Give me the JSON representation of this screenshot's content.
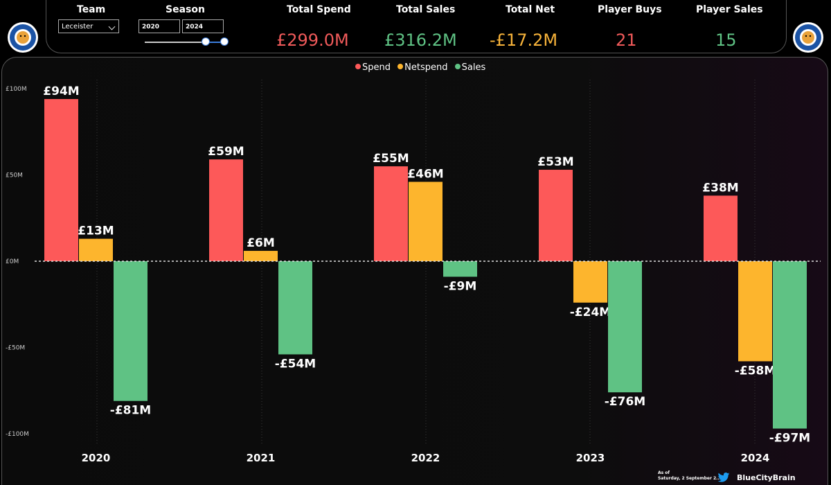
{
  "filters": {
    "team_label": "Team",
    "team_value": "Leceister",
    "season_label": "Season",
    "season_start": "2020",
    "season_end": "2024"
  },
  "kpis": [
    {
      "label": "Total Spend",
      "value": "£299.0M",
      "color": "#f05a5a"
    },
    {
      "label": "Total Sales",
      "value": "£316.2M",
      "color": "#5fc284"
    },
    {
      "label": "Total Net",
      "value": "-£17.2M",
      "color": "#f7b33a"
    },
    {
      "label": "Player Buys",
      "value": "21",
      "color": "#f05a5a"
    },
    {
      "label": "Player Sales",
      "value": "15",
      "color": "#5fc284"
    }
  ],
  "legend": [
    {
      "name": "Spend",
      "color": "#fd5959"
    },
    {
      "name": "Netspend",
      "color": "#fdb52d"
    },
    {
      "name": "Sales",
      "color": "#5fc284"
    }
  ],
  "footer": {
    "as_of_label": "As of",
    "as_of_date": "Saturday, 2 September 2...",
    "twitter_icon": "twitter-icon",
    "handle": "BlueCityBrain"
  },
  "logo_icon": "club-crest-icon",
  "chart_data": {
    "type": "bar",
    "categories": [
      "2020",
      "2021",
      "2022",
      "2023",
      "2024"
    ],
    "series": [
      {
        "name": "Spend",
        "values": [
          94,
          59,
          55,
          53,
          38
        ],
        "labels": [
          "£94M",
          "£59M",
          "£55M",
          "£53M",
          "£38M"
        ],
        "color": "#fd5959"
      },
      {
        "name": "Netspend",
        "values": [
          13,
          6,
          46,
          -24,
          -58
        ],
        "labels": [
          "£13M",
          "£6M",
          "£46M",
          "-£24M",
          "-£58M"
        ],
        "color": "#fdb52d"
      },
      {
        "name": "Sales",
        "values": [
          -81,
          -54,
          -9,
          -76,
          -97
        ],
        "labels": [
          "-£81M",
          "-£54M",
          "-£9M",
          "-£76M",
          "-£97M"
        ],
        "color": "#5fc284"
      }
    ],
    "yticks": [
      100,
      50,
      0,
      -50,
      -100
    ],
    "ytick_labels": [
      "£100M",
      "£50M",
      "£0M",
      "-£50M",
      "-£100M"
    ],
    "ylim": [
      -100,
      100
    ],
    "legend_position": "top-center",
    "grid": "vertical dotted"
  }
}
